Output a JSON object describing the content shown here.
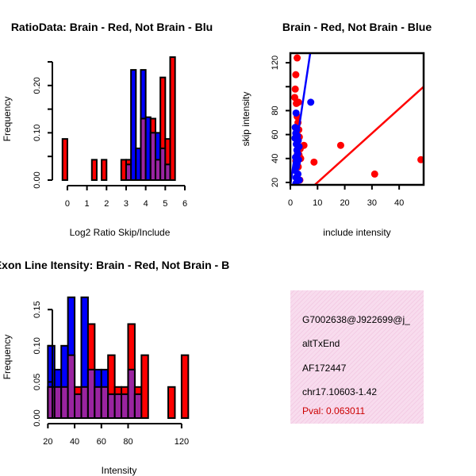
{
  "colors": {
    "red": "#ff0000",
    "blue": "#0000ff",
    "purple": "#9a24a0",
    "fit_red": "#ff0000",
    "fit_blue": "#0000ff"
  },
  "chart_data": [
    {
      "type": "bar",
      "title": "RatioData: Brain - Red, Not Brain - Blu",
      "xlabel": "Log2 Ratio Skip/Include",
      "ylabel": "Frequency",
      "xlim": [
        -0.2,
        6
      ],
      "ylim": [
        0,
        0.26
      ],
      "xticks": [
        0,
        1,
        2,
        3,
        4,
        5,
        6
      ],
      "yticks": [
        0.0,
        0.1,
        0.2
      ],
      "ytick_labels": [
        "0.00",
        "0.10",
        "0.20"
      ],
      "bin_width": 0.25,
      "bin_starts": [
        -0.25,
        0,
        0.25,
        0.5,
        0.75,
        1,
        1.25,
        1.5,
        1.75,
        2,
        2.25,
        2.5,
        2.75,
        3,
        3.25,
        3.5,
        3.75,
        4,
        4.25,
        4.5,
        4.75,
        5,
        5.25,
        5.5
      ],
      "series": [
        {
          "name": "Brain",
          "color": "red",
          "values": [
            0.087,
            0,
            0,
            0,
            0,
            0,
            0.043,
            0,
            0.043,
            0,
            0,
            0,
            0.043,
            0.043,
            0,
            0,
            0.13,
            0,
            0.13,
            0.043,
            0.217,
            0.087,
            0.26,
            0
          ]
        },
        {
          "name": "Not Brain",
          "color": "blue",
          "values": [
            0,
            0,
            0,
            0,
            0,
            0,
            0,
            0,
            0,
            0,
            0,
            0,
            0,
            0.033,
            0.233,
            0.067,
            0.233,
            0.133,
            0.1,
            0.1,
            0.067,
            0.033,
            0,
            0
          ]
        }
      ]
    },
    {
      "type": "scatter",
      "title": "Brain - Red, Not Brain - Blue",
      "xlabel": "include intensity",
      "ylabel": "skip intensity",
      "xlim": [
        0,
        49
      ],
      "ylim": [
        18,
        128
      ],
      "xticks": [
        0,
        10,
        20,
        30,
        40
      ],
      "yticks": [
        20,
        40,
        60,
        80,
        120
      ],
      "series": [
        {
          "name": "Brain",
          "color": "red",
          "points": [
            [
              2.5,
              124
            ],
            [
              2,
              110
            ],
            [
              1.8,
              98
            ],
            [
              1.6,
              91
            ],
            [
              3,
              87
            ],
            [
              2.2,
              86
            ],
            [
              2.5,
              75
            ],
            [
              2.8,
              70
            ],
            [
              3.1,
              64
            ],
            [
              2.4,
              60
            ],
            [
              3.3,
              58
            ],
            [
              2.7,
              55
            ],
            [
              5,
              51
            ],
            [
              18.5,
              51
            ],
            [
              3.6,
              48
            ],
            [
              3.2,
              43
            ],
            [
              8.7,
              37
            ],
            [
              31,
              27
            ],
            [
              48,
              39
            ],
            [
              2.9,
              33
            ],
            [
              2,
              38
            ],
            [
              3.8,
              40
            ],
            [
              2.6,
              44
            ],
            [
              3.5,
              22
            ]
          ],
          "fit": {
            "x": [
              8.5,
              49
            ],
            "y": [
              17,
              100
            ]
          }
        },
        {
          "name": "Not Brain",
          "color": "blue",
          "points": [
            [
              7.5,
              87
            ],
            [
              2.1,
              78
            ],
            [
              1.8,
              66
            ],
            [
              2.3,
              64
            ],
            [
              2.0,
              61
            ],
            [
              2.6,
              59
            ],
            [
              1.7,
              57
            ],
            [
              2.9,
              55
            ],
            [
              2.2,
              52
            ],
            [
              3.2,
              50
            ],
            [
              2.4,
              47
            ],
            [
              2.7,
              44
            ],
            [
              1.9,
              41
            ],
            [
              3.0,
              39
            ],
            [
              2.5,
              36
            ],
            [
              2.2,
              33
            ],
            [
              1.8,
              30
            ],
            [
              2.8,
              27
            ],
            [
              2.1,
              24
            ],
            [
              3.3,
              22
            ],
            [
              2.0,
              19
            ]
          ],
          "fit": {
            "x": [
              0,
              7.3
            ],
            "y": [
              18,
              128
            ]
          }
        }
      ]
    },
    {
      "type": "bar",
      "title": "Exon Line Itensity: Brain - Red, Not Brain - B",
      "xlabel": "Intensity",
      "ylabel": "Frequency",
      "xlim": [
        18,
        126
      ],
      "ylim": [
        0,
        0.17
      ],
      "xticks": [
        20,
        40,
        60,
        80,
        120
      ],
      "yticks": [
        0.0,
        0.05,
        0.1,
        0.15
      ],
      "ytick_labels": [
        "0.00",
        "0.05",
        "0.10",
        "0.15"
      ],
      "bin_width": 5,
      "bin_starts": [
        20,
        25,
        30,
        35,
        40,
        45,
        50,
        55,
        60,
        65,
        70,
        75,
        80,
        85,
        90,
        95,
        100,
        105,
        110,
        115,
        120
      ],
      "series": [
        {
          "name": "Brain",
          "color": "red",
          "values": [
            0.043,
            0.043,
            0.043,
            0.087,
            0.043,
            0.043,
            0.13,
            0.043,
            0.043,
            0.087,
            0.043,
            0.043,
            0.13,
            0.043,
            0.087,
            0,
            0,
            0,
            0.043,
            0,
            0.087
          ]
        },
        {
          "name": "Not Brain",
          "color": "blue",
          "values": [
            0.1,
            0.067,
            0.1,
            0.167,
            0.033,
            0.167,
            0.067,
            0.067,
            0.067,
            0.033,
            0.033,
            0.033,
            0.067,
            0.033,
            0,
            0,
            0,
            0,
            0,
            0,
            0
          ]
        }
      ]
    }
  ],
  "info": {
    "id": "G7002638@J922699@j_",
    "type": "altTxEnd",
    "accession": "AF172447",
    "location": "chr17.10603-1.42",
    "pval": "Pval: 0.063011"
  }
}
